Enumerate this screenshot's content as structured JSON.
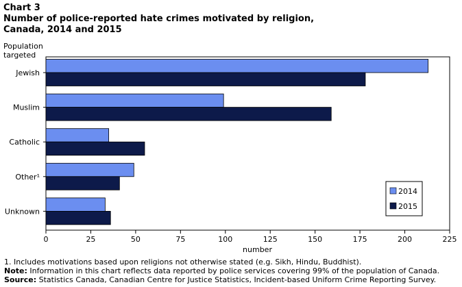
{
  "header": {
    "chart_number": "Chart 3",
    "title": "Number of police-reported hate crimes motivated by religion, Canada, 2014 and 2015"
  },
  "chart_data": {
    "type": "bar",
    "orientation": "horizontal",
    "ylabel": "Population targeted",
    "xlabel": "number",
    "categories": [
      "Jewish",
      "Muslim",
      "Catholic",
      "Other¹",
      "Unknown"
    ],
    "series": [
      {
        "name": "2014",
        "color": "#6b8ef0",
        "values": [
          213,
          99,
          35,
          49,
          33
        ]
      },
      {
        "name": "2015",
        "color": "#0d1a4a",
        "values": [
          178,
          159,
          55,
          41,
          36
        ]
      }
    ],
    "xlim": [
      0,
      225
    ],
    "xticks": [
      0,
      25,
      50,
      75,
      100,
      125,
      150,
      175,
      200,
      225
    ],
    "legend_position": "bottom-right",
    "grid": false
  },
  "footnotes": {
    "note1": "1. Includes motivations based upon religions not otherwise stated (e.g. Sikh, Hindu, Buddhist).",
    "note_label": "Note:",
    "note_text": " Information in this chart reflects data reported by police services covering 99% of the population of Canada.",
    "source_label": "Source:",
    "source_text": " Statistics Canada, Canadian Centre for Justice Statistics, Incident-based Uniform Crime Reporting Survey."
  }
}
